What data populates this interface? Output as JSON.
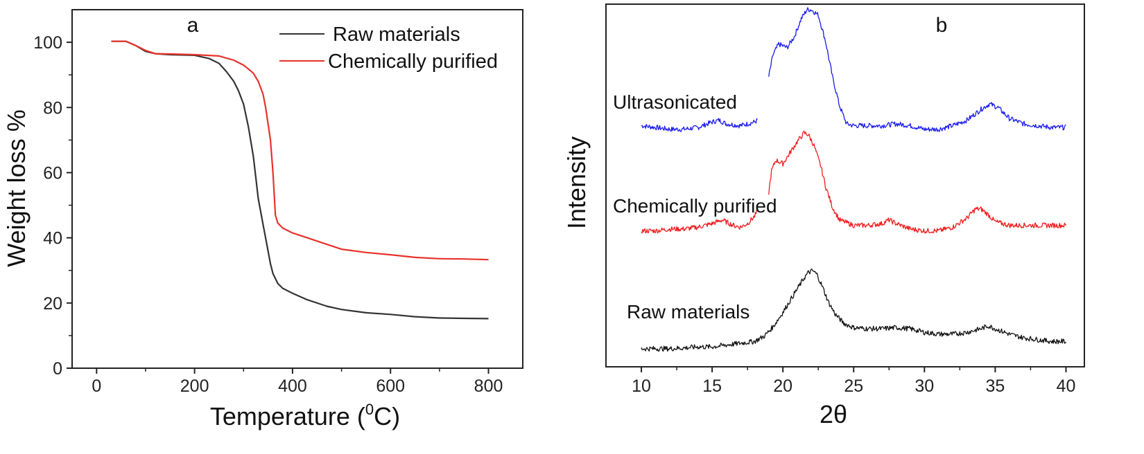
{
  "chart_data": [
    {
      "type": "line",
      "panel_letter": "a",
      "xlabel_main": "Temperature (",
      "xlabel_sup": "0",
      "xlabel_tail": "C)",
      "ylabel": "Weight loss %",
      "xlim": [
        -50,
        870
      ],
      "ylim": [
        0,
        110
      ],
      "xticks": [
        0,
        200,
        400,
        600,
        800
      ],
      "yticks": [
        0,
        20,
        40,
        60,
        80,
        100
      ],
      "grid": false,
      "legend": "top-right",
      "series": [
        {
          "name": "Raw materials",
          "color": "#333333",
          "x": [
            30,
            60,
            80,
            100,
            120,
            150,
            200,
            230,
            250,
            265,
            280,
            290,
            300,
            310,
            320,
            330,
            340,
            350,
            355,
            360,
            365,
            370,
            380,
            400,
            430,
            470,
            500,
            550,
            600,
            650,
            700,
            750,
            800
          ],
          "y": [
            100.3,
            100.3,
            99,
            97.2,
            96.5,
            96.2,
            96,
            95,
            93.5,
            91,
            88,
            85,
            81,
            74,
            65,
            52,
            44,
            36,
            32,
            29,
            27.5,
            26,
            24.5,
            23,
            21,
            19,
            18,
            17,
            16.5,
            15.8,
            15.4,
            15.3,
            15.2
          ]
        },
        {
          "name": "Chemically purified",
          "color": "#e8312a",
          "x": [
            30,
            60,
            80,
            100,
            120,
            150,
            200,
            250,
            280,
            300,
            310,
            320,
            330,
            340,
            345,
            350,
            355,
            360,
            365,
            370,
            380,
            400,
            430,
            470,
            500,
            550,
            600,
            650,
            700,
            750,
            800
          ],
          "y": [
            100.3,
            100.3,
            99,
            97.5,
            96.5,
            96.4,
            96.2,
            95.8,
            94.5,
            93,
            91.8,
            90.5,
            88,
            84,
            80,
            75,
            70,
            60,
            47,
            44.5,
            43,
            41.5,
            40,
            38,
            36.5,
            35.5,
            34.8,
            34,
            33.6,
            33.5,
            33.3
          ]
        }
      ]
    },
    {
      "type": "line",
      "panel_letter": "b",
      "xlabel": "2θ",
      "ylabel": "Intensity",
      "xlim": [
        7.5,
        41.3
      ],
      "ylim": [
        0,
        100
      ],
      "xticks": [
        10,
        15,
        20,
        25,
        30,
        35,
        40
      ],
      "grid": false,
      "series": [
        {
          "name": "Ultrasonicated",
          "color": "#1a1aee",
          "segments": [
            {
              "x": [
                10,
                11,
                12,
                13,
                14,
                15,
                15.5,
                16,
                17,
                18,
                18.2
              ],
              "y": [
                66.5,
                66,
                65.5,
                65.5,
                66,
                67.5,
                68,
                67,
                66.5,
                67.5,
                68
              ]
            },
            {
              "x": [
                19,
                19.3,
                19.7,
                20.3,
                20.8,
                21.3,
                21.7,
                22,
                22.5,
                23,
                23.5,
                24,
                24.5,
                25,
                26,
                27,
                28,
                29,
                30,
                31,
                32,
                33,
                34,
                34.6,
                35.2,
                36,
                37,
                38,
                39,
                40
              ],
              "y": [
                80,
                86,
                89,
                88,
                91,
                96,
                98.5,
                98.5,
                97,
                90,
                80,
                72,
                67,
                66.5,
                66.5,
                66.5,
                67,
                66.5,
                65.5,
                65.5,
                66.5,
                68,
                71,
                72.5,
                71.5,
                68.5,
                67,
                66.5,
                66,
                66
              ]
            }
          ]
        },
        {
          "name": "Chemically purified",
          "color": "#ee1c1c",
          "segments": [
            {
              "x": [
                10,
                11,
                12,
                13,
                14,
                15,
                15.7,
                16.5,
                17,
                17.5,
                18,
                18.2
              ],
              "y": [
                37.5,
                37.5,
                38,
                38,
                38.5,
                39.5,
                40.5,
                39,
                38.5,
                39.5,
                41.5,
                43
              ]
            },
            {
              "x": [
                19,
                19.2,
                19.5,
                20,
                20.5,
                21,
                21.5,
                21.8,
                22.2,
                22.7,
                23,
                23.5,
                24,
                25,
                26,
                27,
                27.5,
                28,
                29,
                30,
                31,
                32,
                33,
                33.6,
                34,
                34.5,
                35,
                36,
                37,
                38,
                39,
                40
              ],
              "y": [
                48,
                54,
                57,
                56,
                59,
                62,
                64.5,
                64,
                61,
                55,
                50,
                44,
                40.5,
                39,
                39,
                39.5,
                40.5,
                39.5,
                38,
                37.5,
                37.5,
                38.5,
                41,
                43.5,
                43.5,
                42,
                40,
                39,
                39,
                39,
                39,
                39
              ]
            }
          ]
        },
        {
          "name": "Raw materials",
          "color": "#111111",
          "segments": [
            {
              "x": [
                10,
                11,
                12,
                13,
                14,
                15,
                16,
                17,
                18,
                18.7,
                19.3,
                20,
                20.7,
                21.1,
                21.5,
                21.8,
                22.1,
                22.4,
                22.8,
                23.2,
                23.7,
                24.3,
                25,
                26,
                27,
                28,
                29,
                30,
                31,
                32,
                33,
                34,
                34.5,
                35,
                36,
                37,
                38,
                39,
                40
              ],
              "y": [
                5,
                5,
                5,
                5.2,
                5.5,
                5.5,
                6,
                6.5,
                7,
                8.5,
                11,
                15,
                19.5,
                22,
                24.5,
                26,
                26.5,
                25.5,
                22,
                18,
                14.5,
                12,
                10.8,
                10.5,
                10.5,
                10.8,
                10.5,
                9.5,
                9,
                9,
                9.5,
                10.5,
                11.3,
                10.5,
                9,
                8,
                7.5,
                7,
                7
              ]
            }
          ]
        }
      ],
      "curve_labels": [
        "Ultrasonicated",
        "Chemically purified",
        "Raw materials"
      ]
    }
  ]
}
